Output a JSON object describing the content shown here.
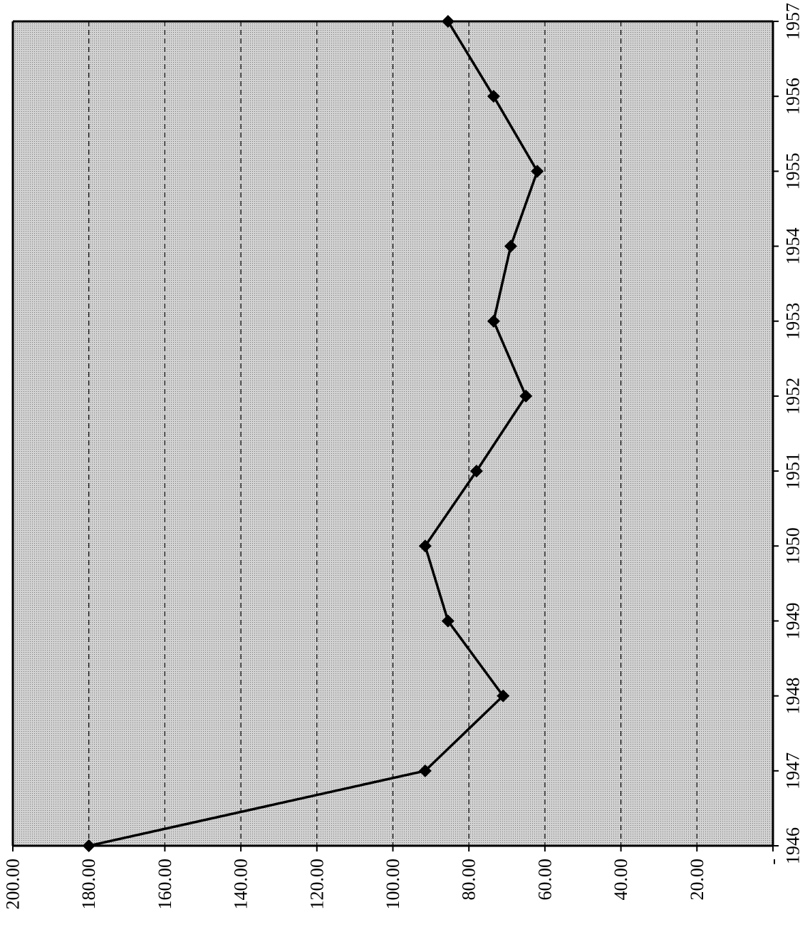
{
  "chart_data": {
    "type": "line",
    "orientation": "rotated-90-clockwise",
    "title": "",
    "xlabel": "",
    "ylabel": "",
    "x": [
      "1946",
      "1947",
      "1948",
      "1949",
      "1950",
      "1951",
      "1952",
      "1953",
      "1954",
      "1955",
      "1956",
      "1957"
    ],
    "series": [
      {
        "values": [
          180,
          91.5,
          71,
          85.5,
          91.5,
          78,
          65,
          73.5,
          69,
          62,
          73.5,
          85.5
        ],
        "color": "#000000",
        "marker": "diamond"
      }
    ],
    "ylim": [
      0,
      200
    ],
    "y_ticks": [
      {
        "value": 0,
        "label": "-"
      },
      {
        "value": 20,
        "label": "20.00"
      },
      {
        "value": 40,
        "label": "40.00"
      },
      {
        "value": 60,
        "label": "60.00"
      },
      {
        "value": 80,
        "label": "80.00"
      },
      {
        "value": 100,
        "label": "100.00"
      },
      {
        "value": 120,
        "label": "120.00"
      },
      {
        "value": 140,
        "label": "140.00"
      },
      {
        "value": 160,
        "label": "160.00"
      },
      {
        "value": 180,
        "label": "180.00"
      },
      {
        "value": 200,
        "label": "200.00"
      }
    ],
    "grid": true,
    "legend": "none",
    "plot_background": "stippled-gray"
  }
}
